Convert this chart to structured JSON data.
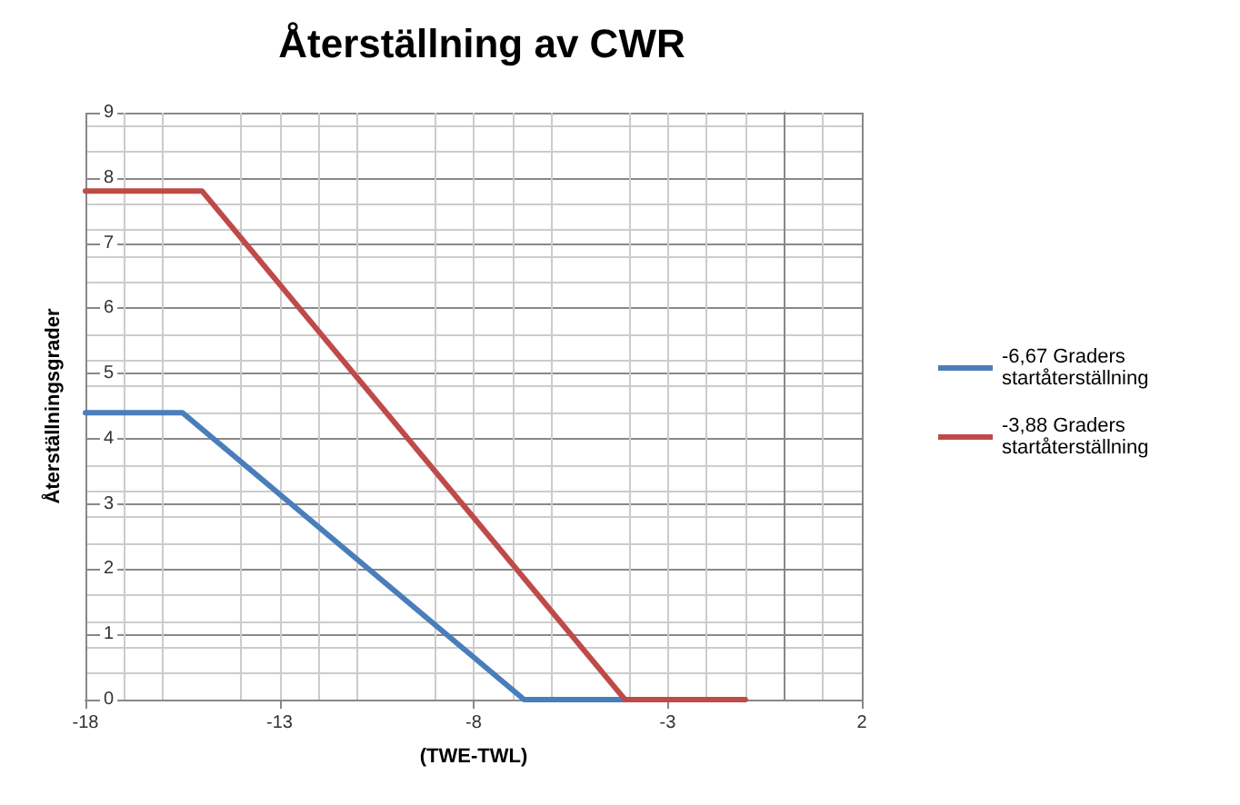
{
  "chart_data": {
    "type": "line",
    "title": "Återställning av CWR",
    "xlabel": "(TWE-TWL)",
    "ylabel": "Återställningsgrader",
    "xlim": [
      -18,
      2
    ],
    "xticks": [
      -18,
      -13,
      -8,
      -3,
      2
    ],
    "ylim": [
      0,
      9
    ],
    "yticks": [
      0,
      1,
      2,
      3,
      4,
      5,
      6,
      7,
      8,
      9
    ],
    "grid": true,
    "legend": "right",
    "marker": "none",
    "line_style": "solid",
    "series": [
      {
        "name": "-6,67 Graders startåterställning",
        "color": "#4a7ebb",
        "x": [
          -18,
          -15.5,
          -6.7,
          -4
        ],
        "values": [
          4.4,
          4.4,
          0,
          0
        ]
      },
      {
        "name": "-3,88 Graders startåterställning",
        "color": "#be4b48",
        "x": [
          -18,
          -15,
          -4.1,
          -1
        ],
        "values": [
          7.8,
          7.8,
          0,
          0
        ]
      }
    ]
  }
}
